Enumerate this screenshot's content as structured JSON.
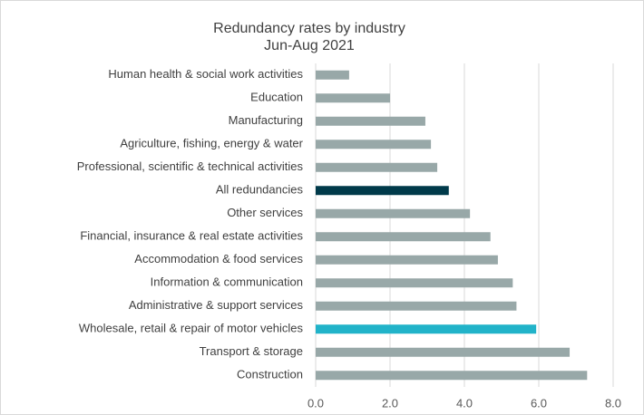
{
  "chart_data": {
    "type": "bar",
    "orientation": "horizontal",
    "title": "Redundancy rates by industry",
    "subtitle": "Jun-Aug 2021",
    "categories": [
      "Human health & social work activities",
      "Education",
      "Manufacturing",
      "Agriculture, fishing, energy & water",
      "Professional, scientific & technical activities",
      "All redundancies",
      "Other services",
      "Financial, insurance & real estate activities",
      "Accommodation & food services",
      "Information & communication",
      "Administrative & support services",
      "Wholesale, retail & repair of motor vehicles",
      "Transport & storage",
      "Construction"
    ],
    "values": [
      0.9,
      2.0,
      2.95,
      3.1,
      3.27,
      3.58,
      4.15,
      4.7,
      4.9,
      5.3,
      5.4,
      5.93,
      6.83,
      7.3
    ],
    "colors": [
      "#98a8a8",
      "#98a8a8",
      "#98a8a8",
      "#98a8a8",
      "#98a8a8",
      "#003a4a",
      "#98a8a8",
      "#98a8a8",
      "#98a8a8",
      "#98a8a8",
      "#98a8a8",
      "#21b3c9",
      "#98a8a8",
      "#98a8a8"
    ],
    "xlim": [
      0,
      8.5
    ],
    "xticks": [
      {
        "value": 0,
        "label": "0.0"
      },
      {
        "value": 2,
        "label": "2.0"
      },
      {
        "value": 4,
        "label": "4.0"
      },
      {
        "value": 6,
        "label": "6.0"
      },
      {
        "value": 8,
        "label": "8.0"
      }
    ],
    "grid": true
  }
}
